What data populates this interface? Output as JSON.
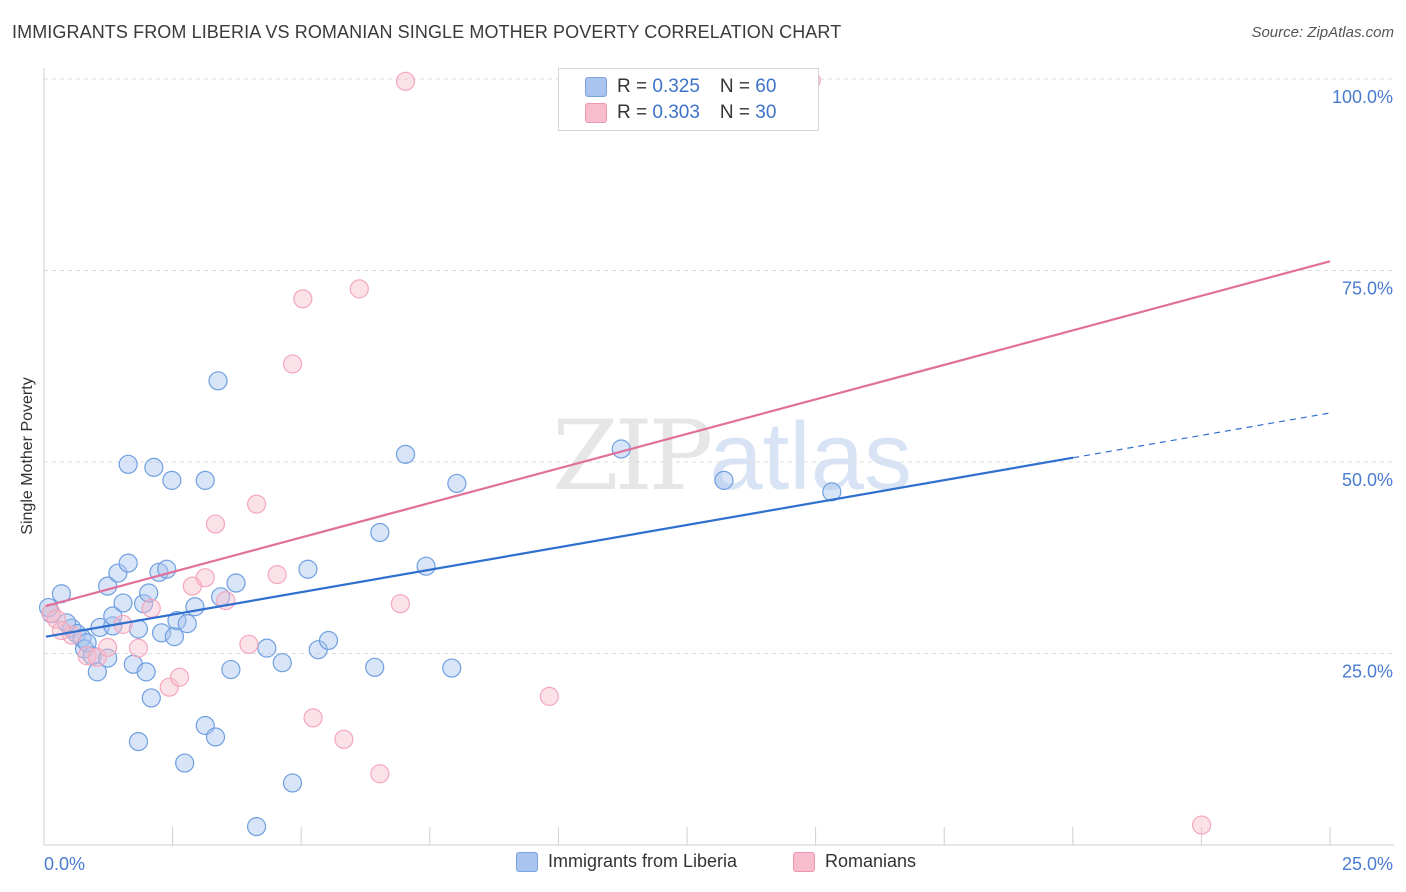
{
  "title": "IMMIGRANTS FROM LIBERIA VS ROMANIAN SINGLE MOTHER POVERTY CORRELATION CHART",
  "source": "Source: ZipAtlas.com",
  "watermark": {
    "zip": "ZIP",
    "atlas": "atlas"
  },
  "legend_top": [
    {
      "r_label": "R = ",
      "r_value": "0.325",
      "n_label": "N = ",
      "n_value": "60",
      "color": "#a9c4ee",
      "border": "#7aa3e0"
    },
    {
      "r_label": "R = ",
      "r_value": "0.303",
      "n_label": "N = ",
      "n_value": "30",
      "color": "#f7bccd",
      "border": "#ee97b0"
    }
  ],
  "legend_bottom": [
    {
      "label": "Immigrants from Liberia",
      "color": "#a9c4ee",
      "border": "#7aa3e0"
    },
    {
      "label": "Romanians",
      "color": "#f7bccd",
      "border": "#ee97b0"
    }
  ],
  "chart_data": {
    "type": "scatter",
    "title": "IMMIGRANTS FROM LIBERIA VS ROMANIAN SINGLE MOTHER POVERTY CORRELATION CHART",
    "xlabel": "",
    "ylabel": "Single Mother Poverty",
    "xlim": [
      0,
      25
    ],
    "ylim": [
      0,
      100
    ],
    "x_tick_labels": [
      "0.0%",
      "25.0%"
    ],
    "y_ticks": [
      25,
      50,
      75,
      100
    ],
    "y_tick_labels": [
      "25.0%",
      "50.0%",
      "75.0%",
      "100.0%"
    ],
    "grid": true,
    "legend": "top-center",
    "series": [
      {
        "name": "Immigrants from Liberia",
        "color": "#6f9fe0",
        "line_color": "#2f6fce",
        "trend": {
          "x": [
            0,
            20,
            25
          ],
          "y": [
            27.2,
            50.6,
            56.4
          ],
          "solid_until": 20
        },
        "points": [
          [
            0.1,
            30.2
          ],
          [
            0.3,
            32.8
          ],
          [
            0.5,
            28.3
          ],
          [
            0.6,
            27.6
          ],
          [
            0.7,
            27.0
          ],
          [
            0.75,
            25.6
          ],
          [
            0.8,
            26.4
          ],
          [
            0.9,
            24.7
          ],
          [
            1.0,
            22.6
          ],
          [
            1.05,
            28.4
          ],
          [
            1.2,
            24.4
          ],
          [
            1.3,
            28.6
          ],
          [
            1.2,
            33.8
          ],
          [
            1.3,
            29.9
          ],
          [
            1.4,
            35.5
          ],
          [
            1.5,
            31.6
          ],
          [
            1.6,
            36.8
          ],
          [
            1.6,
            49.7
          ],
          [
            1.7,
            23.6
          ],
          [
            1.8,
            28.2
          ],
          [
            1.8,
            13.5
          ],
          [
            1.9,
            31.5
          ],
          [
            1.95,
            22.6
          ],
          [
            2.0,
            32.9
          ],
          [
            2.05,
            19.2
          ],
          [
            2.1,
            49.3
          ],
          [
            2.2,
            35.6
          ],
          [
            2.25,
            27.7
          ],
          [
            2.35,
            36.0
          ],
          [
            2.45,
            47.6
          ],
          [
            2.5,
            27.2
          ],
          [
            2.55,
            29.3
          ],
          [
            2.7,
            10.7
          ],
          [
            2.75,
            28.9
          ],
          [
            2.9,
            31.1
          ],
          [
            3.1,
            47.6
          ],
          [
            3.1,
            15.6
          ],
          [
            3.3,
            14.1
          ],
          [
            3.35,
            60.6
          ],
          [
            3.4,
            32.4
          ],
          [
            3.6,
            22.9
          ],
          [
            3.7,
            34.2
          ],
          [
            4.1,
            2.4
          ],
          [
            4.3,
            25.7
          ],
          [
            4.6,
            23.8
          ],
          [
            4.8,
            8.1
          ],
          [
            5.1,
            36.0
          ],
          [
            5.3,
            25.5
          ],
          [
            5.5,
            26.7
          ],
          [
            6.4,
            23.2
          ],
          [
            6.5,
            40.8
          ],
          [
            7.0,
            51.0
          ],
          [
            7.4,
            36.4
          ],
          [
            7.9,
            23.1
          ],
          [
            8.0,
            47.2
          ],
          [
            11.2,
            51.7
          ],
          [
            13.2,
            47.6
          ],
          [
            15.3,
            46.1
          ],
          [
            0.05,
            31.0
          ],
          [
            0.4,
            29.0
          ]
        ]
      },
      {
        "name": "Romanians",
        "color": "#f5a7bd",
        "line_color": "#e0709a",
        "trend": {
          "x": [
            0,
            25
          ],
          "y": [
            31.2,
            76.2
          ],
          "solid_until": 25
        },
        "points": [
          [
            0.1,
            30.3
          ],
          [
            0.2,
            29.5
          ],
          [
            0.5,
            27.4
          ],
          [
            0.8,
            24.7
          ],
          [
            1.0,
            24.5
          ],
          [
            1.2,
            25.8
          ],
          [
            1.5,
            28.8
          ],
          [
            1.8,
            25.7
          ],
          [
            2.05,
            30.9
          ],
          [
            2.4,
            20.6
          ],
          [
            2.6,
            21.9
          ],
          [
            2.85,
            33.8
          ],
          [
            3.1,
            34.9
          ],
          [
            3.3,
            41.9
          ],
          [
            3.5,
            31.9
          ],
          [
            3.95,
            26.2
          ],
          [
            4.1,
            44.5
          ],
          [
            4.5,
            35.3
          ],
          [
            4.8,
            62.8
          ],
          [
            5.0,
            71.3
          ],
          [
            5.2,
            16.6
          ],
          [
            5.8,
            13.8
          ],
          [
            6.1,
            72.6
          ],
          [
            6.5,
            9.3
          ],
          [
            6.9,
            31.5
          ],
          [
            7.0,
            99.7
          ],
          [
            9.8,
            19.4
          ],
          [
            14.9,
            99.8
          ],
          [
            22.5,
            2.6
          ],
          [
            0.3,
            28.0
          ]
        ]
      }
    ]
  }
}
